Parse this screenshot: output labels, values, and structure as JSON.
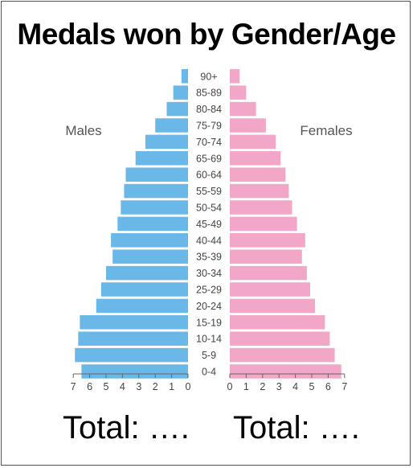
{
  "title": "Medals won by Gender/Age",
  "totals": {
    "male": "Total: ….",
    "female": "Total: …."
  },
  "chart_data": {
    "type": "bar",
    "orientation": "horizontal-population-pyramid",
    "title": "Medals won by Gender/Age",
    "categories": [
      "90+",
      "85-89",
      "80-84",
      "75-79",
      "70-74",
      "65-69",
      "60-64",
      "55-59",
      "50-54",
      "45-49",
      "40-44",
      "35-39",
      "30-34",
      "25-29",
      "20-24",
      "15-19",
      "10-14",
      "5-9",
      "0-4"
    ],
    "series": [
      {
        "name": "Males",
        "color": "#6ab8e8",
        "values": [
          0.4,
          0.9,
          1.3,
          2.0,
          2.6,
          3.2,
          3.8,
          3.9,
          4.1,
          4.3,
          4.7,
          4.6,
          5.0,
          5.3,
          5.6,
          6.6,
          6.7,
          6.9,
          6.5
        ]
      },
      {
        "name": "Females",
        "color": "#f2a6c8",
        "values": [
          0.6,
          1.0,
          1.6,
          2.2,
          2.8,
          3.1,
          3.4,
          3.6,
          3.8,
          4.1,
          4.6,
          4.4,
          4.7,
          4.9,
          5.2,
          5.8,
          6.1,
          6.4,
          6.8
        ]
      }
    ],
    "male_ticks": [
      "7",
      "6",
      "5",
      "4",
      "3",
      "2",
      "1",
      "0"
    ],
    "female_ticks": [
      "0",
      "1",
      "2",
      "3",
      "4",
      "5",
      "6",
      "7"
    ],
    "xlim": [
      0,
      7
    ]
  }
}
